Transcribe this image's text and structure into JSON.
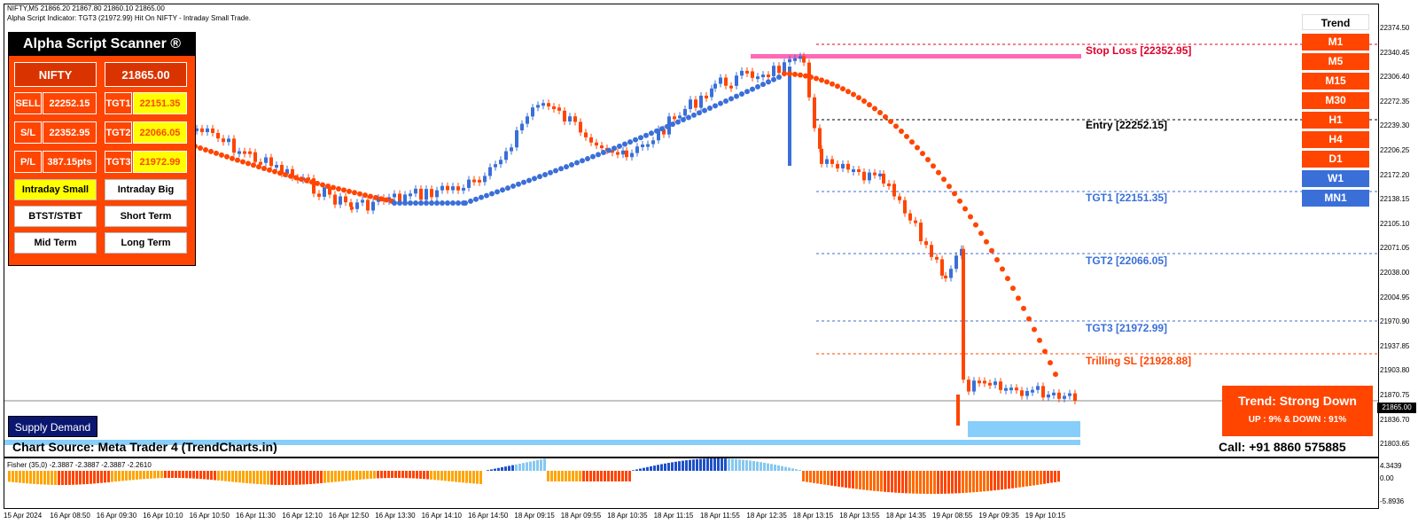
{
  "header": {
    "symbol_line": "NIFTY,M5  21866.20 21867.80 21860.10 21865.00",
    "indicator_line": "Alpha Script Indicator: TGT3 (21972.99) Hit On NIFTY - Intraday Small Trade."
  },
  "scanner": {
    "title": "Alpha Script Scanner ®",
    "symbol": "NIFTY",
    "price": "21865.00",
    "rows": [
      {
        "label": "SELL",
        "value": "22252.15",
        "tgt_label": "TGT1",
        "tgt_value": "22151.35"
      },
      {
        "label": "S/L",
        "value": "22352.95",
        "tgt_label": "TGT2",
        "tgt_value": "22066.05"
      },
      {
        "label": "P/L",
        "value": "387.15pts",
        "tgt_label": "TGT3",
        "tgt_value": "21972.99"
      }
    ],
    "buttons": [
      "Intraday Small",
      "Intraday Big",
      "BTST/STBT",
      "Short Term",
      "Mid Term",
      "Long Term"
    ]
  },
  "levels": {
    "stop_loss": "Stop Loss [22352.95]",
    "entry": "Entry [22252.15]",
    "tgt1": "TGT1 [22151.35]",
    "tgt2": "TGT2 [22066.05]",
    "tgt3": "TGT3 [21972.99]",
    "trailing_sl": "Trilling SL [21928.88]"
  },
  "trend_panel": {
    "title": "Trend",
    "timeframes": [
      {
        "label": "M1",
        "state": "down"
      },
      {
        "label": "M5",
        "state": "down"
      },
      {
        "label": "M15",
        "state": "down"
      },
      {
        "label": "M30",
        "state": "down"
      },
      {
        "label": "H1",
        "state": "down"
      },
      {
        "label": "H4",
        "state": "down"
      },
      {
        "label": "D1",
        "state": "down"
      },
      {
        "label": "W1",
        "state": "up"
      },
      {
        "label": "MN1",
        "state": "up"
      }
    ]
  },
  "status": {
    "title": "Trend: Strong Down",
    "subtitle": "UP : 9% & DOWN : 91%"
  },
  "supply_demand_button": "Supply Demand",
  "chart_source": "Chart Source: Meta Trader 4 (TrendCharts.in)",
  "call": "Call: +91 8860 575885",
  "current_price_box": "21865.00",
  "price_axis": [
    "22374.50",
    "22340.45",
    "22306.40",
    "22272.35",
    "22239.30",
    "22206.25",
    "22172.20",
    "22138.15",
    "22105.10",
    "22071.05",
    "22038.00",
    "22004.95",
    "21970.90",
    "21937.85",
    "21903.80",
    "21870.75",
    "21836.70",
    "21803.65"
  ],
  "indicator": {
    "label": "Fisher (35,0) -2.3887 -2.3887 -2.3887 -2.2610",
    "axis_top": "4.3439",
    "axis_mid": "0.00",
    "axis_bottom": "-5.8936"
  },
  "time_axis": [
    "15 Apr 2024",
    "16 Apr 08:50",
    "16 Apr 09:30",
    "16 Apr 10:10",
    "16 Apr 10:50",
    "16 Apr 11:30",
    "16 Apr 12:10",
    "16 Apr 12:50",
    "16 Apr 13:30",
    "16 Apr 14:10",
    "16 Apr 14:50",
    "18 Apr 09:15",
    "18 Apr 09:55",
    "18 Apr 10:35",
    "18 Apr 11:15",
    "18 Apr 11:55",
    "18 Apr 12:35",
    "18 Apr 13:15",
    "18 Apr 13:55",
    "18 Apr 14:35",
    "19 Apr 08:55",
    "19 Apr 09:35",
    "19 Apr 10:15"
  ],
  "colors": {
    "bear": "#ff4500",
    "bull": "#3a6fd8",
    "sl_bar": "#ff69b4",
    "demand_zone": "#87cefa",
    "fisher_up": "#1e50c8",
    "fisher_up_light": "#87c8f0",
    "fisher_down": "#ff4500",
    "fisher_down_light": "#ffa500"
  }
}
